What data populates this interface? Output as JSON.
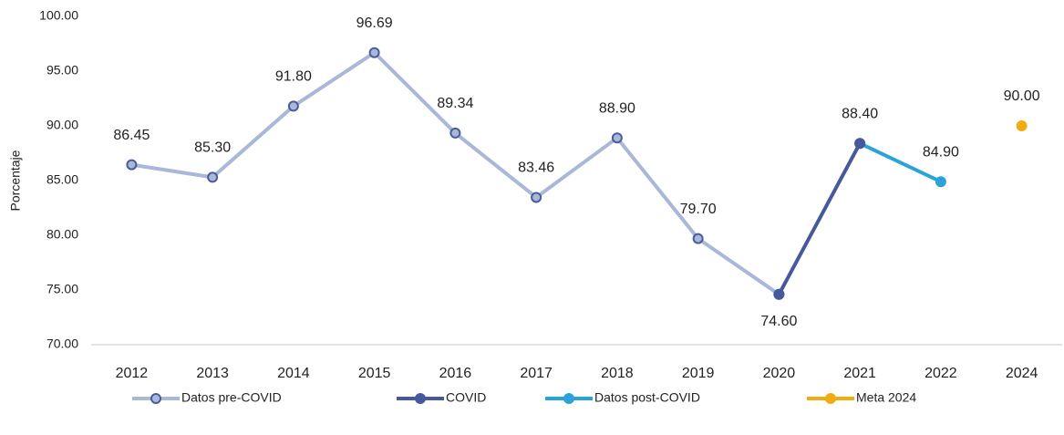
{
  "chart_data": {
    "type": "line",
    "y_label": "Porcentaje",
    "categories": [
      "2012",
      "2013",
      "2014",
      "2015",
      "2016",
      "2017",
      "2018",
      "2019",
      "2020",
      "2021",
      "2022",
      "2024"
    ],
    "series": [
      {
        "name": "Datos pre-COVID",
        "color": "#a9b7d9",
        "marker_edge": "#4a5d9a",
        "values": [
          86.45,
          85.3,
          91.8,
          96.69,
          89.34,
          83.46,
          88.9,
          79.7,
          74.6,
          null,
          null,
          null
        ],
        "value_labels": [
          "86.45",
          "85.30",
          "91.80",
          "96.69",
          "89.34",
          "83.46",
          "88.90",
          "79.70",
          "74.60",
          null,
          null,
          null
        ]
      },
      {
        "name": "COVID",
        "color": "#46599a",
        "marker_edge": "#46599a",
        "values": [
          null,
          null,
          null,
          null,
          null,
          null,
          null,
          null,
          74.6,
          88.4,
          null,
          null
        ],
        "value_labels": [
          null,
          null,
          null,
          null,
          null,
          null,
          null,
          null,
          null,
          "88.40",
          null,
          null
        ]
      },
      {
        "name": "Datos post-COVID",
        "color": "#2aa3d8",
        "marker_edge": "#2aa3d8",
        "values": [
          null,
          null,
          null,
          null,
          null,
          null,
          null,
          null,
          null,
          88.4,
          84.9,
          null
        ],
        "value_labels": [
          null,
          null,
          null,
          null,
          null,
          null,
          null,
          null,
          null,
          null,
          "84.90",
          null
        ]
      },
      {
        "name": "Meta 2024",
        "color": "#f2ac13",
        "marker_edge": "#f2ac13",
        "values": [
          null,
          null,
          null,
          null,
          null,
          null,
          null,
          null,
          null,
          null,
          null,
          90
        ],
        "value_labels": [
          null,
          null,
          null,
          null,
          null,
          null,
          null,
          null,
          null,
          null,
          null,
          "90.00"
        ]
      }
    ],
    "ylim": [
      70,
      100
    ],
    "yticks": [
      {
        "value": 70,
        "label": "70.00"
      },
      {
        "value": 75,
        "label": "75.00"
      },
      {
        "value": 80,
        "label": "80.00"
      },
      {
        "value": 85,
        "label": "85.00"
      },
      {
        "value": 90,
        "label": "90.00"
      },
      {
        "value": 95,
        "label": "95.00"
      },
      {
        "value": 100,
        "label": "100.00"
      }
    ],
    "grid": false,
    "legend": "bottom"
  }
}
